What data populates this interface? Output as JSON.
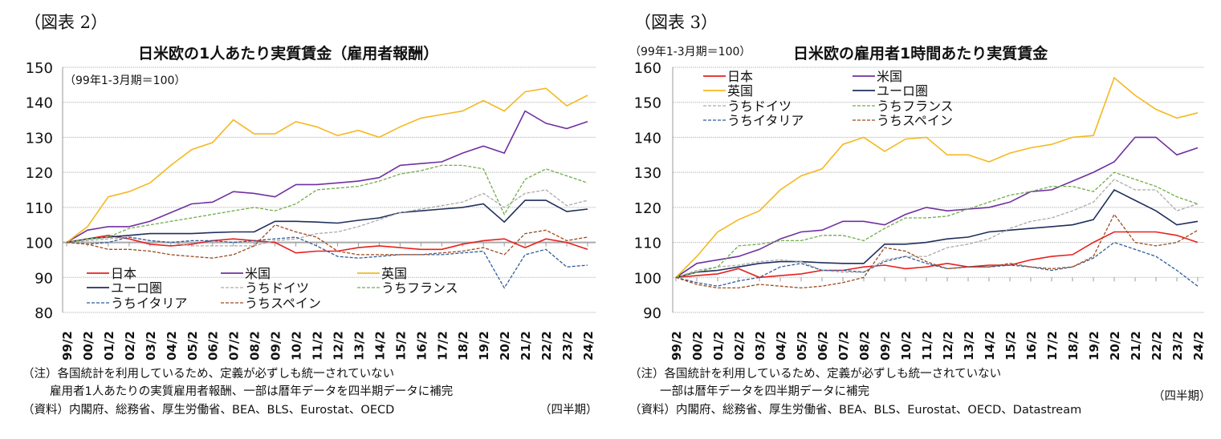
{
  "figures": [
    {
      "label": "（図表 2）",
      "title": "日米欧の1人あたり実質賃金（雇用者報酬）",
      "base": "（99年1-3月期＝100）",
      "notes": [
        "（注）各国統計を利用しているため、定義が必ずしも統一されていない",
        "雇用者1人あたりの実質雇用者報酬、一部は暦年データを四半期データに補完",
        "（資料）内閣府、総務省、厚生労働省、BEA、BLS、Eurostat、OECD"
      ],
      "period": "（四半期）"
    },
    {
      "label": "（図表 3）",
      "title": "日米欧の雇用者1時間あたり実質賃金",
      "base": "（99年1-3月期＝100）",
      "notes": [
        "（注）各国統計を利用しているため、定義が必ずしも統一されていない",
        "一部は暦年データを四半期データに補完",
        "（資料）内閣府、総務省、厚生労働省、BEA、BLS、Eurostat、OECD、Datastream"
      ],
      "period": "（四半期）"
    }
  ],
  "chart_data": [
    {
      "type": "line",
      "ylim": [
        80,
        150
      ],
      "yticks": [
        80,
        90,
        100,
        110,
        120,
        130,
        140,
        150
      ],
      "grid": true,
      "legend": "bottom-left",
      "categories": [
        "99/2",
        "00/2",
        "01/2",
        "02/2",
        "03/2",
        "04/2",
        "05/2",
        "06/2",
        "07/2",
        "08/2",
        "09/2",
        "10/2",
        "11/2",
        "12/2",
        "13/2",
        "14/2",
        "15/2",
        "16/2",
        "17/2",
        "18/2",
        "19/2",
        "20/2",
        "21/2",
        "22/2",
        "23/2",
        "24/2"
      ],
      "series": [
        {
          "name": "日本",
          "color": "#e8201e",
          "dash": false,
          "values": [
            100,
            101,
            102,
            101,
            99.5,
            99,
            99.5,
            100.5,
            101,
            100.5,
            100,
            97,
            97.5,
            97.5,
            98.5,
            99,
            98.5,
            98,
            98,
            99.5,
            100.5,
            101,
            98.5,
            101,
            100,
            98
          ]
        },
        {
          "name": "米国",
          "color": "#7030a0",
          "dash": false,
          "values": [
            100,
            103.5,
            104.5,
            104.5,
            106,
            108.5,
            111,
            111.5,
            114.5,
            114,
            113,
            116.5,
            116.5,
            117,
            117.5,
            118.5,
            122,
            122.5,
            123,
            125.5,
            127.5,
            125.5,
            137.5,
            134,
            132.5,
            134.5
          ]
        },
        {
          "name": "英国",
          "color": "#f5b820",
          "dash": false,
          "values": [
            100,
            104.5,
            113,
            114.5,
            117,
            122,
            126.5,
            128.5,
            135,
            131,
            131,
            134.5,
            133,
            130.5,
            132,
            130,
            133,
            135.5,
            136.5,
            137.5,
            140.5,
            137.5,
            143,
            144,
            139,
            142
          ]
        },
        {
          "name": "ユーロ圏",
          "color": "#1f2f5c",
          "dash": false,
          "values": [
            100,
            101,
            101.5,
            102,
            102.5,
            102.5,
            102.5,
            102.8,
            103,
            103,
            106,
            106,
            105.8,
            105.5,
            106.3,
            107,
            108.5,
            109,
            109.5,
            110,
            111,
            105.8,
            112,
            112,
            108.8,
            109.5
          ]
        },
        {
          "name": "うちドイツ",
          "color": "#aaaaaa",
          "dash": true,
          "values": [
            100,
            100.5,
            101,
            101.5,
            100.5,
            100,
            99,
            99,
            99,
            99,
            100.5,
            101,
            102.5,
            103,
            104.5,
            106.5,
            108.5,
            109.5,
            110.5,
            111.5,
            114,
            110,
            114,
            115,
            110.5,
            112
          ]
        },
        {
          "name": "うちフランス",
          "color": "#70ad47",
          "dash": true,
          "values": [
            100,
            101,
            101.5,
            104,
            105,
            106,
            107,
            108,
            109,
            110,
            109,
            111,
            115,
            115.5,
            116,
            117.5,
            119.5,
            120.5,
            122,
            122,
            121,
            108,
            118,
            121,
            119,
            117
          ]
        },
        {
          "name": "うちイタリア",
          "color": "#2e5c9c",
          "dash": true,
          "values": [
            100,
            99.5,
            100,
            101.5,
            100.5,
            100,
            100.5,
            100.5,
            100,
            100.5,
            101,
            101.5,
            99,
            96,
            95.5,
            96,
            96.5,
            96.5,
            96.5,
            97,
            97.5,
            87,
            96.5,
            98,
            93,
            93.5
          ]
        },
        {
          "name": "うちスペイン",
          "color": "#9c4a1e",
          "dash": true,
          "values": [
            100,
            99.5,
            98,
            98,
            97.5,
            96.5,
            96,
            95.5,
            96.5,
            99,
            105,
            103,
            101.5,
            97.5,
            96.5,
            96.5,
            96.5,
            96.5,
            97,
            97.5,
            98.5,
            96.5,
            102.5,
            103.5,
            100.5,
            101.5
          ]
        }
      ]
    },
    {
      "type": "line",
      "ylim": [
        90,
        160
      ],
      "yticks": [
        90,
        100,
        110,
        120,
        130,
        140,
        150,
        160
      ],
      "grid": true,
      "legend": "top-left",
      "categories": [
        "99/2",
        "00/2",
        "01/2",
        "02/2",
        "03/2",
        "04/2",
        "05/2",
        "06/2",
        "07/2",
        "08/2",
        "09/2",
        "10/2",
        "11/2",
        "12/2",
        "13/2",
        "14/2",
        "15/2",
        "16/2",
        "17/2",
        "18/2",
        "19/2",
        "20/2",
        "21/2",
        "22/2",
        "23/2",
        "24/2"
      ],
      "series": [
        {
          "name": "日本",
          "color": "#e8201e",
          "dash": false,
          "values": [
            100,
            100.5,
            101,
            102.5,
            100,
            100.5,
            101,
            102,
            102,
            103,
            103.5,
            102.5,
            103,
            104,
            103,
            103.5,
            103.5,
            105,
            106,
            106.5,
            110,
            113,
            113,
            113,
            112,
            110
          ]
        },
        {
          "name": "米国",
          "color": "#7030a0",
          "dash": false,
          "values": [
            100,
            104,
            105,
            106,
            108,
            111,
            113,
            113.5,
            116,
            116,
            115,
            118,
            120,
            119,
            119.5,
            120,
            121.5,
            124.5,
            125,
            127.5,
            130,
            133,
            140,
            140,
            135,
            137
          ]
        },
        {
          "name": "英国",
          "color": "#f5b820",
          "dash": false,
          "values": [
            100,
            106,
            113,
            116.5,
            119,
            125,
            129,
            131,
            138,
            140,
            136,
            139.5,
            140,
            135,
            135,
            133,
            135.5,
            137,
            138,
            140,
            140.5,
            157,
            152,
            148,
            145.5,
            147
          ]
        },
        {
          "name": "ユーロ圏",
          "color": "#1f2f5c",
          "dash": false,
          "values": [
            100,
            101.5,
            102,
            103,
            104,
            104.5,
            104.5,
            104.2,
            104,
            104,
            109.5,
            109.5,
            110,
            111,
            111.5,
            113,
            113.5,
            114,
            114.5,
            115,
            116.5,
            125,
            122,
            119,
            115,
            116
          ]
        },
        {
          "name": "うちドイツ",
          "color": "#aaaaaa",
          "dash": true,
          "values": [
            100,
            102,
            103,
            103.5,
            104.5,
            105,
            104.5,
            102,
            101.5,
            101.5,
            105,
            106,
            106,
            108.5,
            109.5,
            111,
            114,
            116,
            117,
            119,
            121.5,
            128,
            125,
            125,
            119,
            121
          ]
        },
        {
          "name": "うちフランス",
          "color": "#70ad47",
          "dash": true,
          "values": [
            100,
            101.5,
            103,
            109,
            109.5,
            110.5,
            110.5,
            112,
            112,
            110.5,
            114,
            117,
            117,
            117.5,
            119.5,
            121.5,
            123.5,
            124.5,
            126,
            126,
            124.5,
            130,
            128,
            126,
            123,
            121
          ]
        },
        {
          "name": "うちイタリア",
          "color": "#2e5c9c",
          "dash": true,
          "values": [
            100,
            98.5,
            97.5,
            99,
            100,
            103,
            104,
            102,
            102,
            101.5,
            104.5,
            106,
            104,
            102.5,
            103,
            103,
            103.5,
            103,
            102,
            103,
            105.5,
            110,
            108,
            106,
            102,
            97.5
          ]
        },
        {
          "name": "うちスペイン",
          "color": "#9c4a1e",
          "dash": true,
          "values": [
            100,
            98,
            97,
            97,
            98,
            97.5,
            97,
            97.5,
            98.5,
            100,
            108.5,
            107.5,
            104.5,
            102.5,
            103,
            103,
            104,
            103,
            102.5,
            103,
            106,
            118,
            110,
            109,
            110,
            113.5
          ]
        }
      ]
    }
  ]
}
